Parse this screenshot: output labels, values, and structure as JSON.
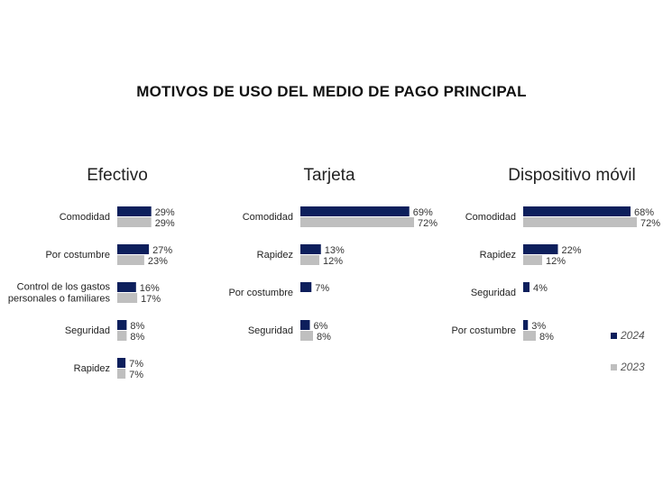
{
  "title": "MOTIVOS DE USO DEL MEDIO DE PAGO PRINCIPAL",
  "colors": {
    "2024": "#0d1f5c",
    "2023": "#bfbfbf"
  },
  "legend": [
    {
      "label": "2024",
      "color": "#0d1f5c"
    },
    {
      "label": "2023",
      "color": "#bfbfbf"
    }
  ],
  "chart_data": [
    {
      "type": "bar",
      "title": "Efectivo",
      "categories": [
        [
          "Comodidad"
        ],
        [
          "Por costumbre"
        ],
        [
          "Control de los gastos",
          "personales o familiares"
        ],
        [
          "Seguridad"
        ],
        [
          "Rapidez"
        ]
      ],
      "series": [
        {
          "name": "2024",
          "values": [
            29,
            27,
            16,
            8,
            7
          ]
        },
        {
          "name": "2023",
          "values": [
            29,
            23,
            17,
            8,
            7
          ]
        }
      ],
      "value_suffix": "%"
    },
    {
      "type": "bar",
      "title": "Tarjeta",
      "categories": [
        [
          "Comodidad"
        ],
        [
          "Rapidez"
        ],
        [
          "Por costumbre"
        ],
        [
          "Seguridad"
        ]
      ],
      "series": [
        {
          "name": "2024",
          "values": [
            69,
            13,
            7,
            6
          ]
        },
        {
          "name": "2023",
          "values": [
            72,
            12,
            null,
            8
          ]
        }
      ],
      "value_suffix": "%"
    },
    {
      "type": "bar",
      "title": "Dispositivo móvil",
      "categories": [
        [
          "Comodidad"
        ],
        [
          "Rapidez"
        ],
        [
          "Seguridad"
        ],
        [
          "Por costumbre"
        ]
      ],
      "series": [
        {
          "name": "2024",
          "values": [
            68,
            22,
            4,
            3
          ]
        },
        {
          "name": "2023",
          "values": [
            72,
            12,
            null,
            8
          ]
        }
      ],
      "value_suffix": "%"
    }
  ]
}
